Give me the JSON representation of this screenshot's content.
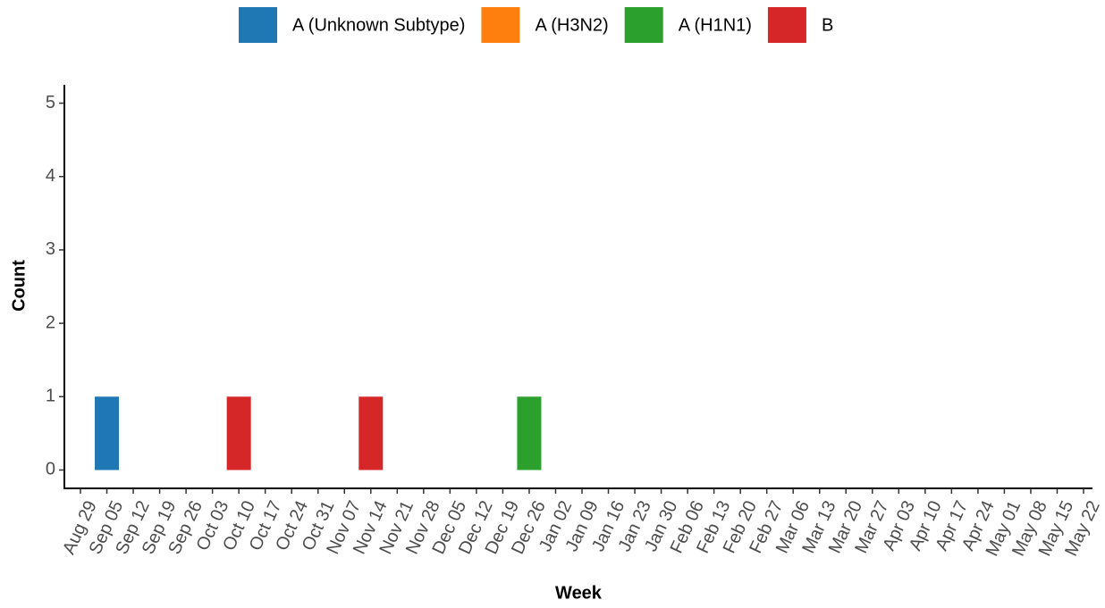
{
  "chart_data": {
    "type": "bar",
    "stacked": true,
    "x_label": "Week",
    "y_label": "Count",
    "categories": [
      "Aug 29",
      "Sep 05",
      "Sep 12",
      "Sep 19",
      "Sep 26",
      "Oct 03",
      "Oct 10",
      "Oct 17",
      "Oct 24",
      "Oct 31",
      "Nov 07",
      "Nov 14",
      "Nov 21",
      "Nov 28",
      "Dec 05",
      "Dec 12",
      "Dec 19",
      "Dec 26",
      "Jan 02",
      "Jan 09",
      "Jan 16",
      "Jan 23",
      "Jan 30",
      "Feb 06",
      "Feb 13",
      "Feb 20",
      "Feb 27",
      "Mar 06",
      "Mar 13",
      "Mar 20",
      "Mar 27",
      "Apr 03",
      "Apr 10",
      "Apr 17",
      "Apr 24",
      "May 01",
      "May 08",
      "May 15",
      "May 22"
    ],
    "series": [
      {
        "name": "A (Unknown Subtype)",
        "color": "#1f77b4",
        "values": [
          0,
          1,
          0,
          0,
          0,
          0,
          0,
          0,
          0,
          0,
          0,
          0,
          0,
          0,
          0,
          0,
          0,
          0,
          0,
          0,
          null,
          null,
          null,
          null,
          null,
          null,
          null,
          null,
          null,
          null,
          null,
          null,
          null,
          null,
          null,
          null,
          null,
          null,
          null
        ]
      },
      {
        "name": "A (H3N2)",
        "color": "#ff7f0e",
        "values": [
          0,
          0,
          0,
          0,
          0,
          0,
          0,
          0,
          0,
          0,
          0,
          0,
          0,
          0,
          0,
          0,
          0,
          0,
          0,
          0,
          null,
          null,
          null,
          null,
          null,
          null,
          null,
          null,
          null,
          null,
          null,
          null,
          null,
          null,
          null,
          null,
          null,
          null,
          null
        ]
      },
      {
        "name": "A (H1N1)",
        "color": "#2ca02c",
        "values": [
          0,
          0,
          0,
          0,
          0,
          0,
          0,
          0,
          0,
          0,
          0,
          0,
          0,
          0,
          0,
          0,
          0,
          1,
          0,
          0,
          null,
          null,
          null,
          null,
          null,
          null,
          null,
          null,
          null,
          null,
          null,
          null,
          null,
          null,
          null,
          null,
          null,
          null,
          null
        ]
      },
      {
        "name": "B",
        "color": "#d62728",
        "values": [
          0,
          0,
          0,
          0,
          0,
          0,
          1,
          0,
          0,
          0,
          0,
          1,
          0,
          0,
          0,
          0,
          0,
          0,
          0,
          0,
          null,
          null,
          null,
          null,
          null,
          null,
          null,
          null,
          null,
          null,
          null,
          null,
          null,
          null,
          null,
          null,
          null,
          null,
          null
        ]
      }
    ],
    "ylim": [
      -0.25,
      5.25
    ],
    "yticks": [
      0,
      1,
      2,
      3,
      4,
      5
    ],
    "grid": false,
    "legend": "top"
  }
}
